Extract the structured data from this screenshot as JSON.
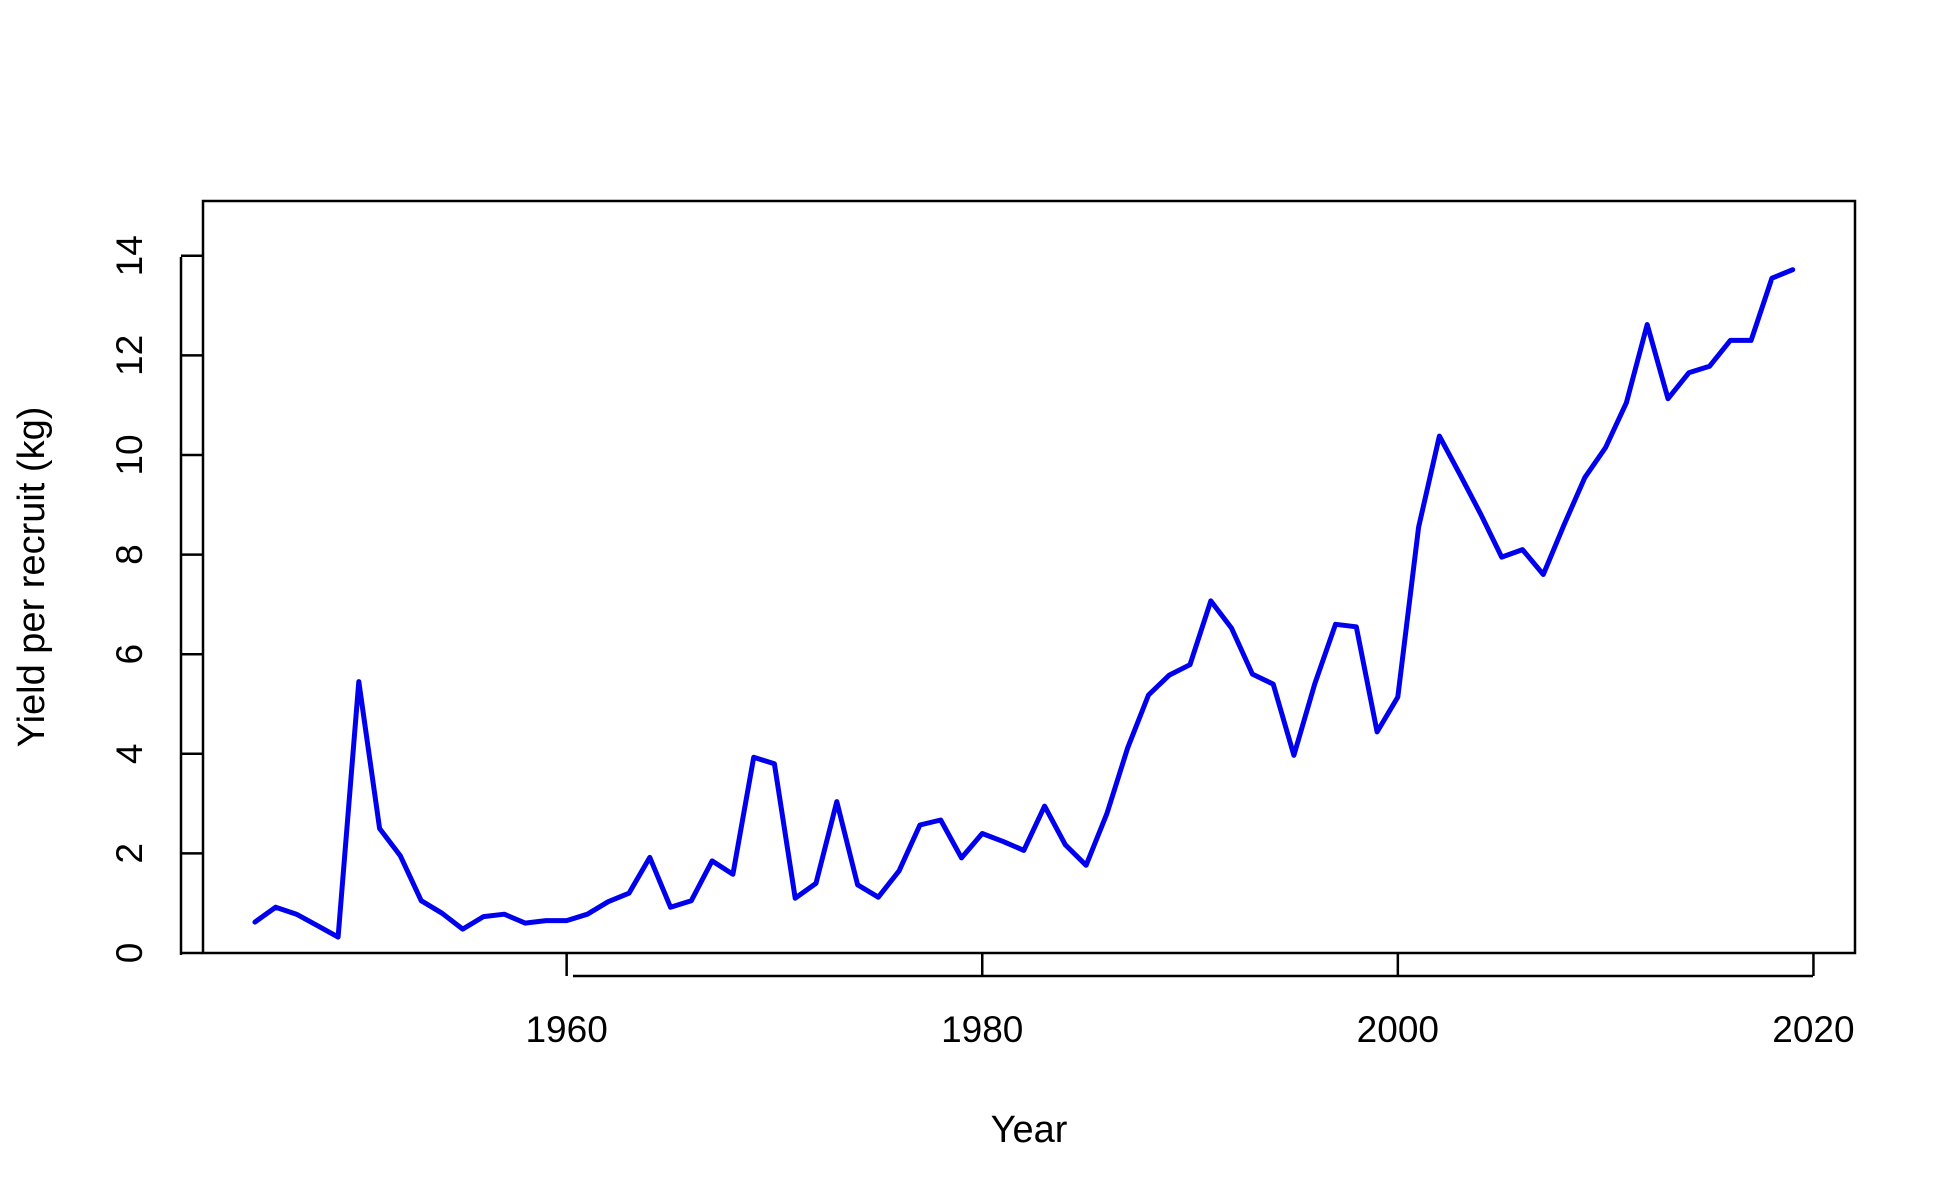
{
  "chart_data": {
    "type": "line",
    "title": "",
    "xlabel": "Year",
    "ylabel": "Yield per recruit (kg)",
    "xlim": [
      1942.5,
      2022
    ],
    "ylim": [
      0,
      15.1
    ],
    "x_ticks": [
      1960,
      1980,
      2000,
      2020
    ],
    "y_ticks": [
      0,
      2,
      4,
      6,
      8,
      10,
      12,
      14
    ],
    "grid": false,
    "legend": "none",
    "series": [
      {
        "color": "#0000ee",
        "x": [
          1945,
          1946,
          1947,
          1948,
          1949,
          1950,
          1951,
          1952,
          1953,
          1954,
          1955,
          1956,
          1957,
          1958,
          1959,
          1960,
          1961,
          1962,
          1963,
          1964,
          1965,
          1966,
          1967,
          1968,
          1969,
          1970,
          1971,
          1972,
          1973,
          1974,
          1975,
          1976,
          1977,
          1978,
          1979,
          1980,
          1981,
          1982,
          1983,
          1984,
          1985,
          1986,
          1987,
          1988,
          1989,
          1990,
          1991,
          1992,
          1993,
          1994,
          1995,
          1996,
          1997,
          1998,
          1999,
          2000,
          2001,
          2002,
          2003,
          2004,
          2005,
          2006,
          2007,
          2008,
          2009,
          2010,
          2011,
          2012,
          2013,
          2014,
          2015,
          2016,
          2017,
          2018,
          2019
        ],
        "y": [
          0.62,
          0.92,
          0.78,
          0.55,
          0.32,
          5.45,
          2.5,
          1.95,
          1.05,
          0.8,
          0.48,
          0.73,
          0.78,
          0.6,
          0.65,
          0.65,
          0.78,
          1.03,
          1.2,
          1.92,
          0.92,
          1.05,
          1.85,
          1.58,
          3.93,
          3.8,
          1.1,
          1.4,
          3.04,
          1.37,
          1.12,
          1.65,
          2.57,
          2.67,
          1.91,
          2.4,
          2.24,
          2.06,
          2.95,
          2.17,
          1.76,
          2.8,
          4.12,
          5.18,
          5.58,
          5.79,
          7.07,
          6.52,
          5.6,
          5.4,
          3.97,
          5.4,
          6.6,
          6.55,
          4.44,
          5.14,
          8.55,
          10.38,
          9.6,
          8.8,
          7.95,
          8.1,
          7.6,
          8.6,
          9.55,
          10.15,
          11.05,
          12.62,
          11.13,
          11.65,
          11.78,
          12.3,
          12.3,
          13.55,
          13.72
        ]
      }
    ]
  }
}
